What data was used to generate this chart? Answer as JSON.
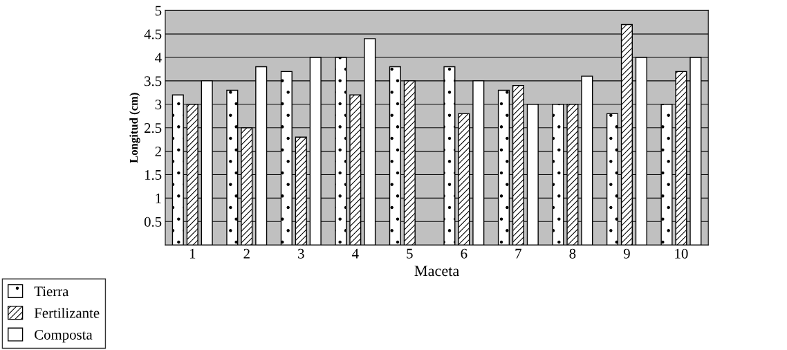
{
  "chart_data": {
    "type": "bar",
    "xlabel": "Maceta",
    "ylabel": "Longitud (cm)",
    "categories": [
      "1",
      "2",
      "3",
      "4",
      "5",
      "6",
      "7",
      "8",
      "9",
      "10"
    ],
    "series": [
      {
        "name": "Tierra",
        "color": "#000000",
        "values": [
          3.2,
          3.3,
          3.7,
          4.0,
          3.8,
          3.8,
          3.3,
          3.0,
          2.8,
          3.0
        ]
      },
      {
        "name": "Fertilizante",
        "color": "#000000",
        "values": [
          3.0,
          2.5,
          2.3,
          3.2,
          3.5,
          2.8,
          3.4,
          3.0,
          4.7,
          3.7
        ]
      },
      {
        "name": "Composta",
        "color": "#ffffff",
        "values": [
          3.5,
          3.8,
          4.0,
          4.4,
          null,
          3.5,
          3.0,
          3.6,
          4.0,
          4.0
        ]
      }
    ],
    "ylim": [
      0,
      5
    ],
    "yticks": [
      {
        "value": 0,
        "label": null
      },
      0.5,
      1,
      1.5,
      2,
      2.5,
      3,
      3.5,
      4,
      4.5,
      5
    ],
    "grid": "y",
    "legend": "bottom left"
  }
}
